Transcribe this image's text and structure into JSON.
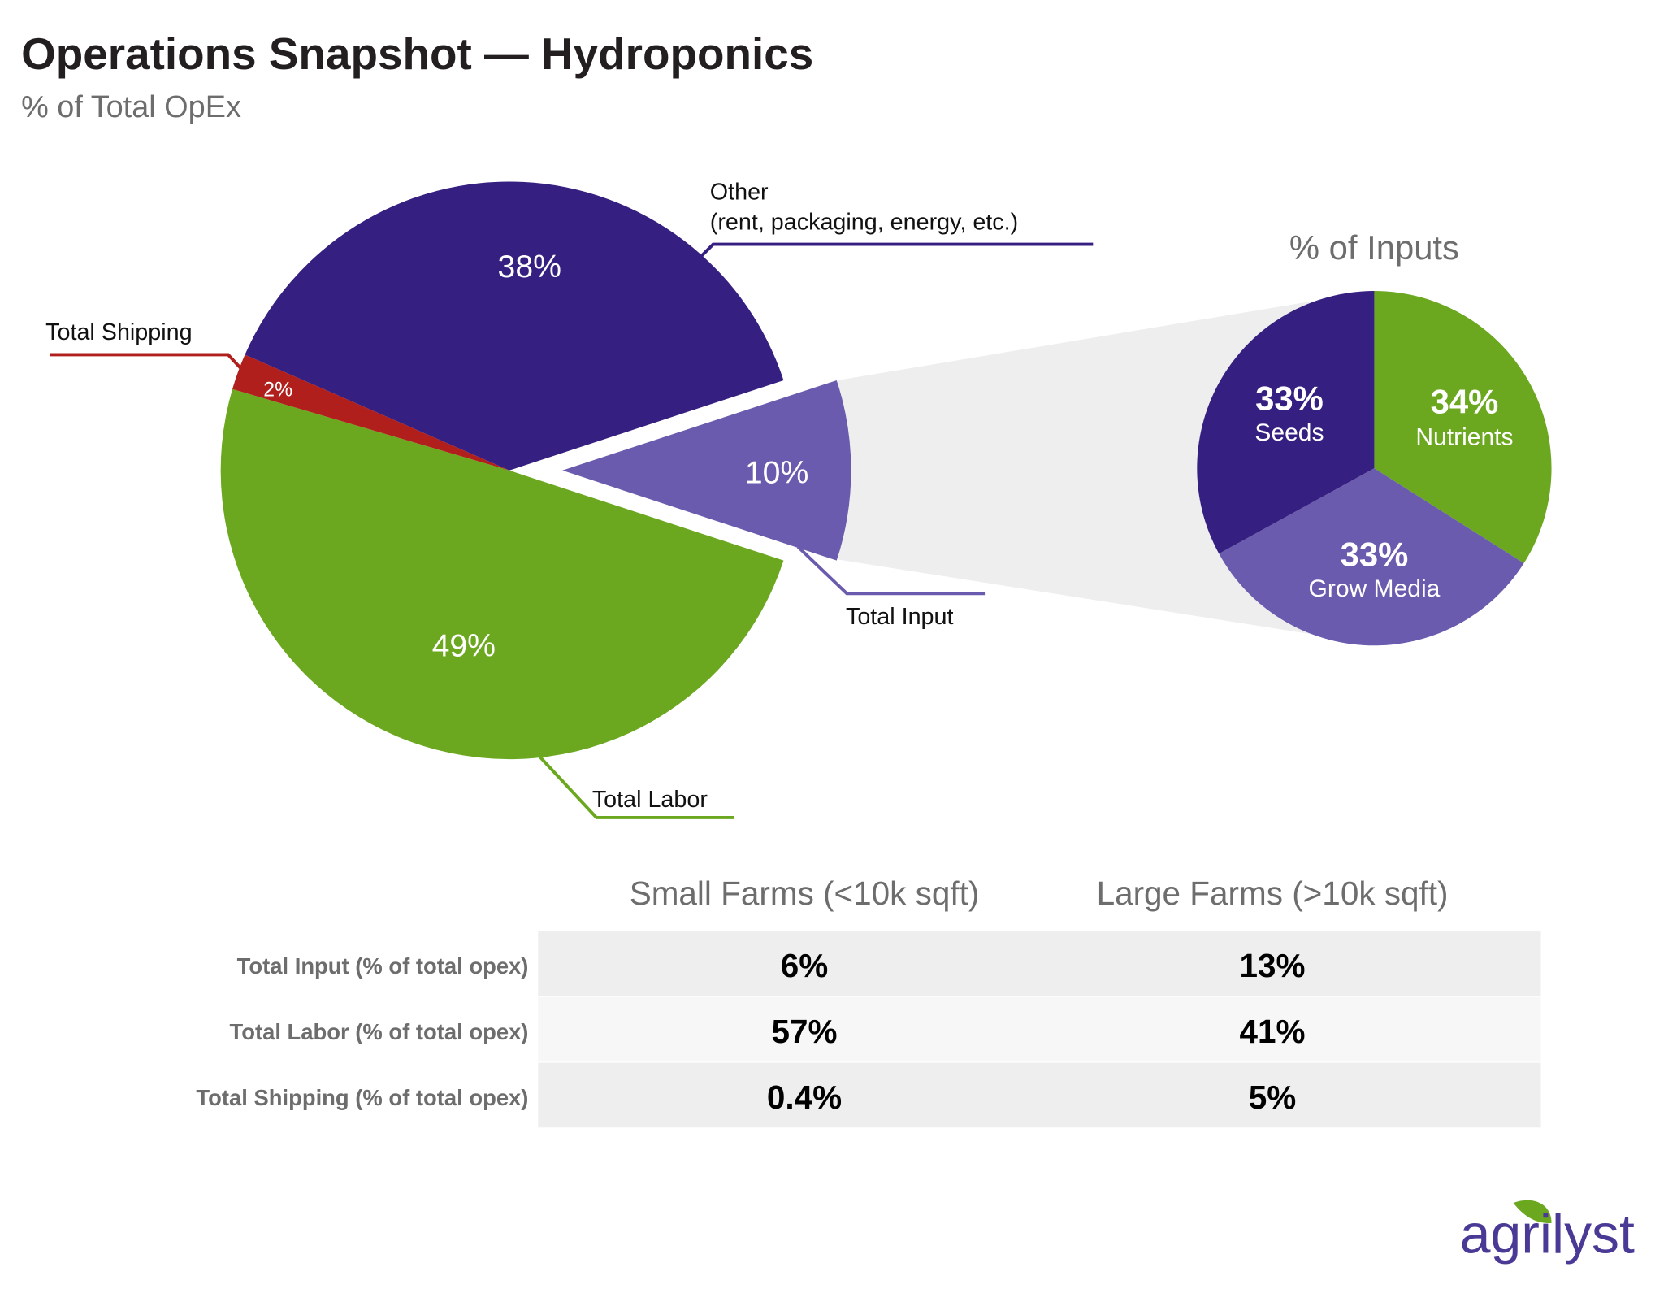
{
  "header": {
    "title": "Operations Snapshot — Hydroponics",
    "subtitle": "% of Total OpEx"
  },
  "chart_data": [
    {
      "type": "pie",
      "title": "% of Total OpEx",
      "slices": [
        {
          "key": "input",
          "label": "Total Input",
          "value": 10,
          "pct_label": "10%",
          "color": "#6b5bae",
          "exploded": true
        },
        {
          "key": "labor",
          "label": "Total Labor",
          "value": 49,
          "pct_label": "49%",
          "color": "#6ba820"
        },
        {
          "key": "shipping",
          "label": "Total Shipping",
          "value": 2,
          "pct_label": "2%",
          "color": "#b01f1c"
        },
        {
          "key": "other",
          "label": "Other",
          "label_line2": "(rent, packaging, energy, etc.)",
          "value": 38,
          "pct_label": "38%",
          "color": "#351f80"
        }
      ]
    },
    {
      "type": "pie",
      "title": "% of Inputs",
      "slices": [
        {
          "key": "nutrients",
          "label": "Nutrients",
          "value": 34,
          "pct_label": "34%",
          "color": "#6ba820"
        },
        {
          "key": "grow_media",
          "label": "Grow Media",
          "value": 33,
          "pct_label": "33%",
          "color": "#6b5bae"
        },
        {
          "key": "seeds",
          "label": "Seeds",
          "value": 33,
          "pct_label": "33%",
          "color": "#351f80"
        }
      ]
    },
    {
      "type": "table",
      "columns": [
        "Small Farms (<10k sqft)",
        "Large Farms (>10k sqft)"
      ],
      "rows": [
        {
          "label": "Total Input (% of total opex)",
          "values": [
            "6%",
            "13%"
          ]
        },
        {
          "label": "Total Labor (% of total opex)",
          "values": [
            "57%",
            "41%"
          ]
        },
        {
          "label": "Total Shipping (% of total opex)",
          "values": [
            "0.4%",
            "5%"
          ]
        }
      ]
    }
  ],
  "logo": {
    "text": "agrilyst",
    "color": "#4a3a96",
    "leaf_color": "#6ba820"
  },
  "colors": {
    "connector": "#eeeeee",
    "row_dark": "#eeeeee",
    "row_light": "#f7f7f7"
  }
}
